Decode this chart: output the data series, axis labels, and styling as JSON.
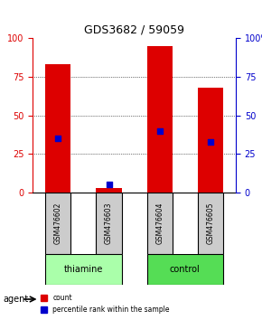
{
  "title": "GDS3682 / 59059",
  "samples": [
    "GSM476602",
    "GSM476603",
    "GSM476604",
    "GSM476605"
  ],
  "red_values": [
    83,
    3,
    95,
    68
  ],
  "blue_values": [
    35,
    5,
    40,
    33
  ],
  "ylim": [
    0,
    100
  ],
  "yticks": [
    0,
    25,
    50,
    75,
    100
  ],
  "groups": [
    {
      "label": "thiamine",
      "samples": [
        0,
        1
      ],
      "color": "#aaffaa"
    },
    {
      "label": "control",
      "samples": [
        2,
        3
      ],
      "color": "#55dd55"
    }
  ],
  "bar_color": "#dd0000",
  "blue_color": "#0000cc",
  "group_label": "agent",
  "legend_red": "count",
  "legend_blue": "percentile rank within the sample",
  "left_axis_color": "#dd0000",
  "right_axis_color": "#0000cc",
  "bar_width": 0.5,
  "xlabel_rotation": -90,
  "sample_box_color": "#cccccc",
  "group_box_border": "#000000"
}
